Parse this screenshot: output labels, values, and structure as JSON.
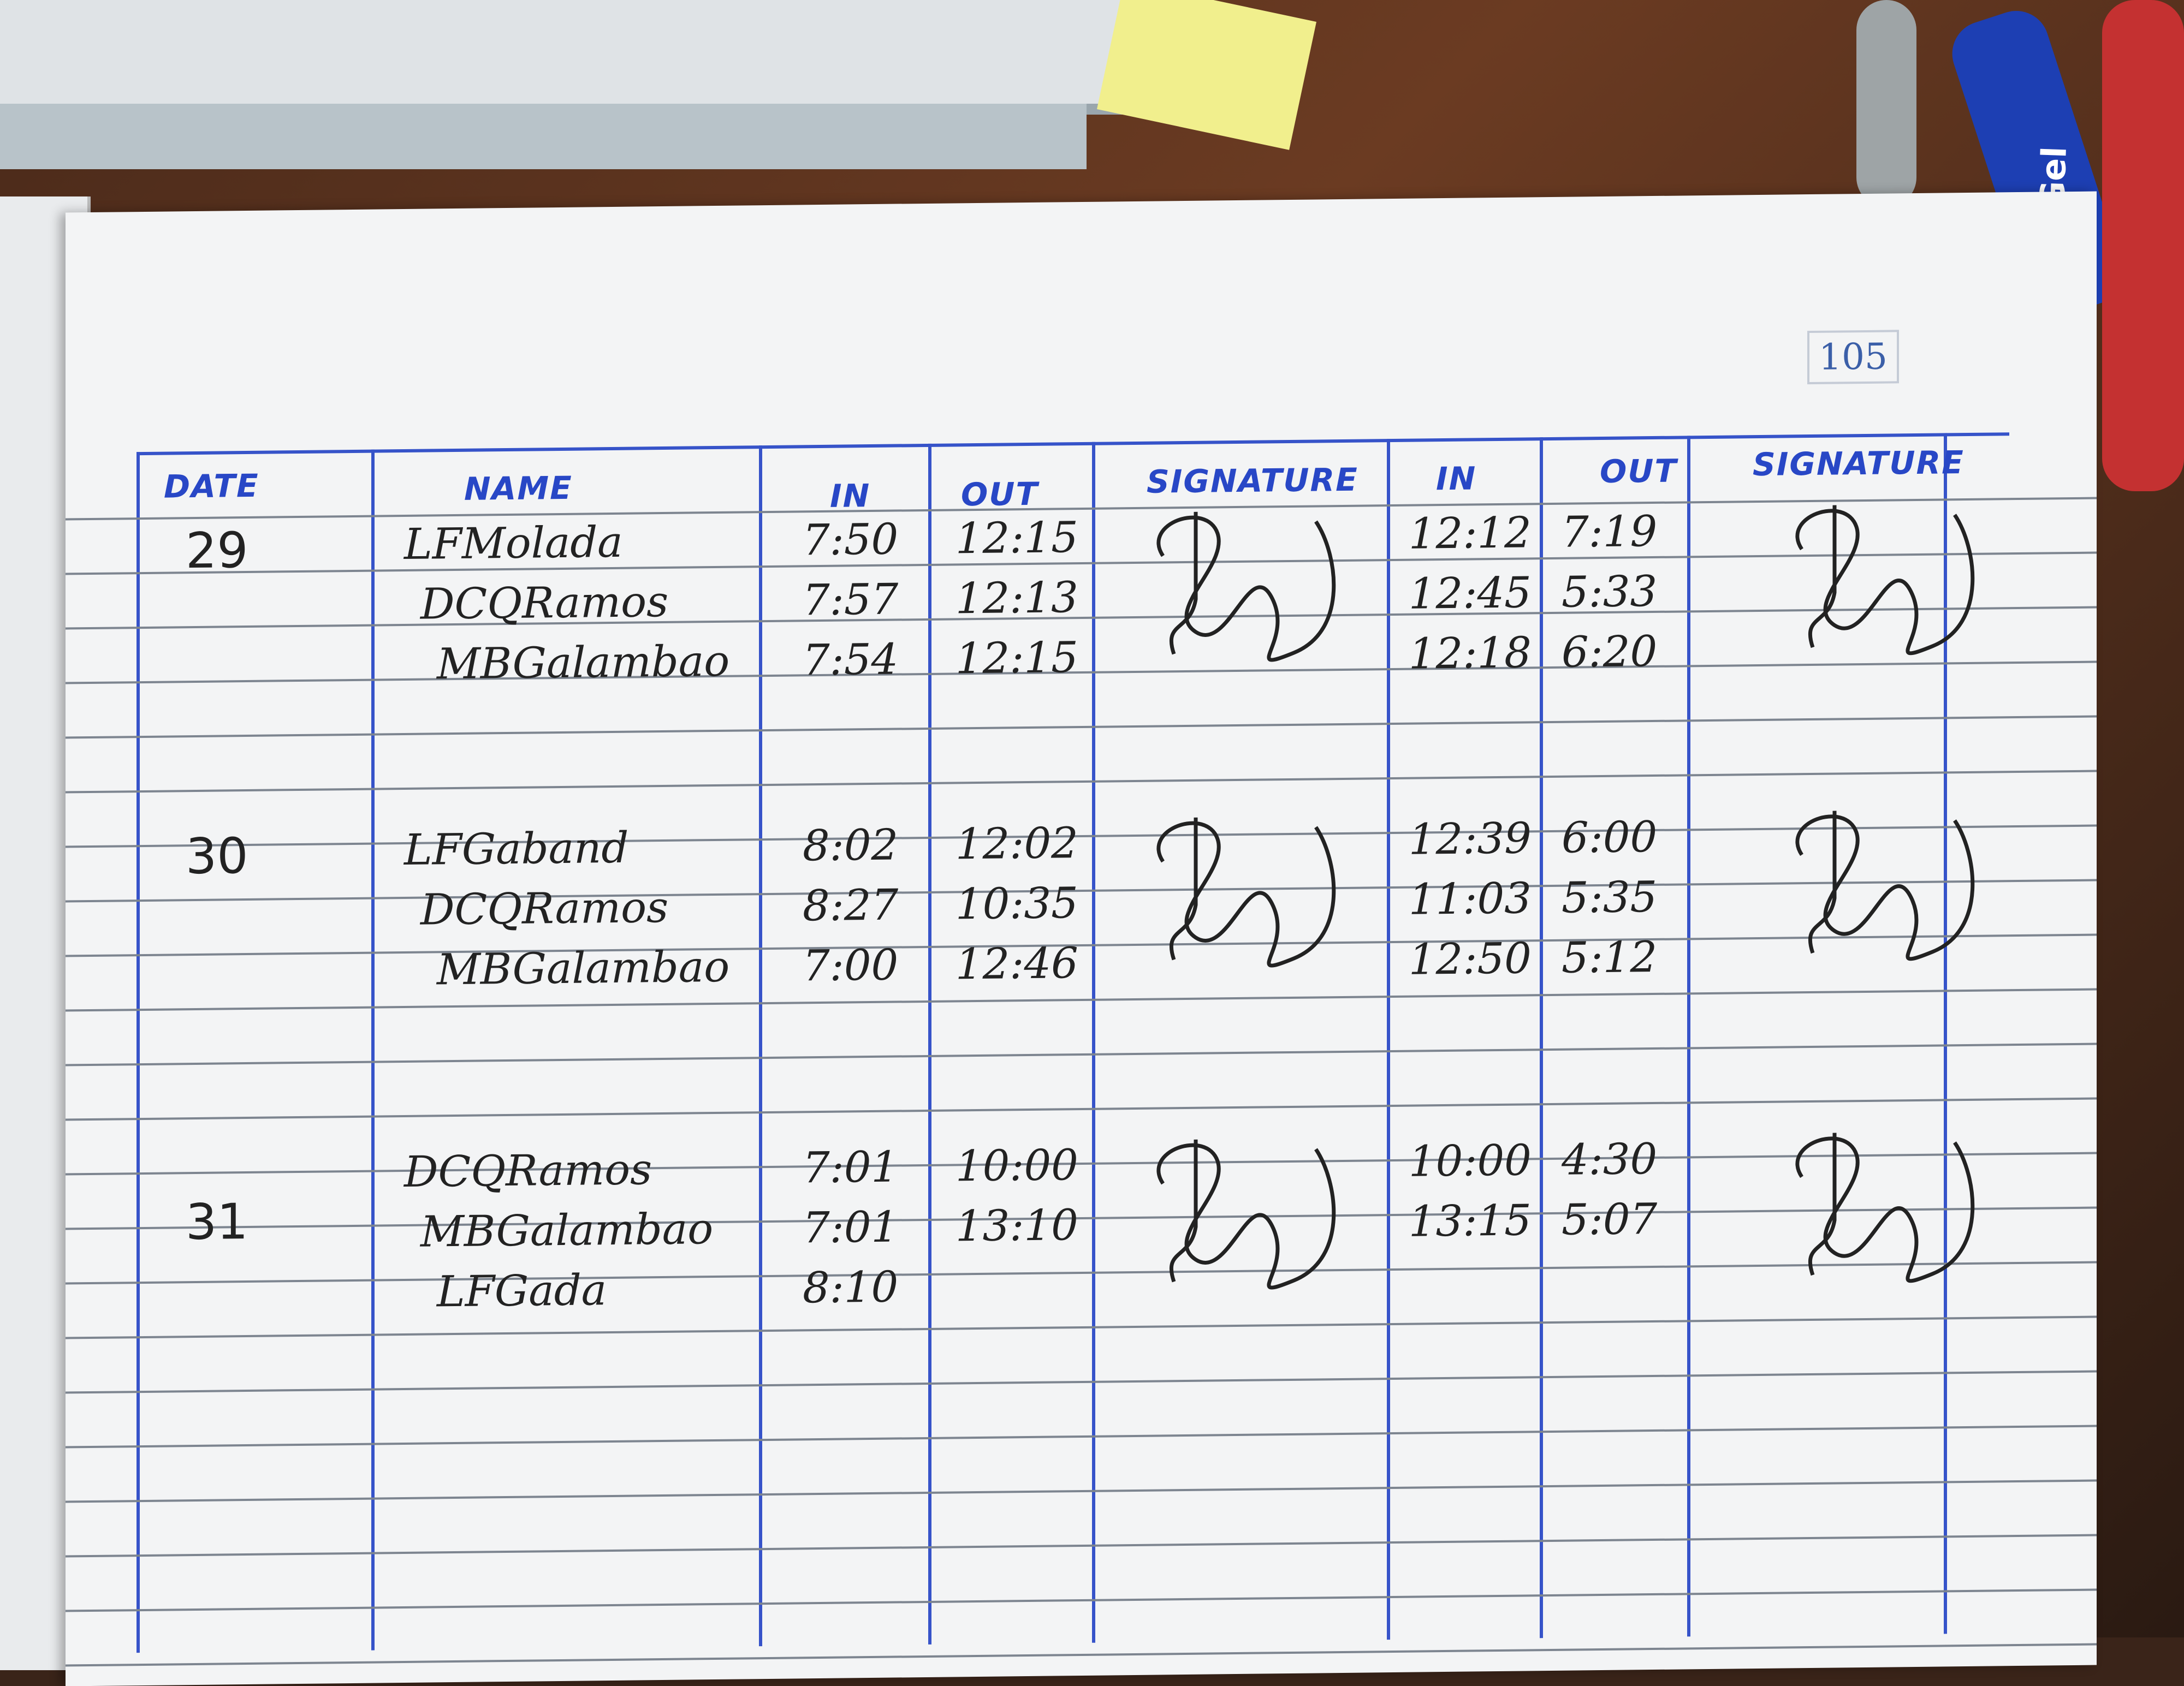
{
  "page_number": "105",
  "pen_label": "i-Gel",
  "headers": {
    "date": "DATE",
    "name": "NAME",
    "in1": "IN",
    "out1": "OUT",
    "sig1": "SIGNATURE",
    "in2": "IN",
    "out2": "OUT",
    "sig2": "SIGNATURE"
  },
  "days": [
    {
      "date": "29",
      "entries": [
        {
          "name": "LFMolada",
          "in1": "7:50",
          "out1": "12:15",
          "in2": "12:12",
          "out2": "7:19"
        },
        {
          "name": "DCQRamos",
          "in1": "7:57",
          "out1": "12:13",
          "in2": "12:45",
          "out2": "5:33"
        },
        {
          "name": "MBGalambao",
          "in1": "7:54",
          "out1": "12:15",
          "in2": "12:18",
          "out2": "6:20"
        }
      ]
    },
    {
      "date": "30",
      "entries": [
        {
          "name": "LFGaband",
          "in1": "8:02",
          "out1": "12:02",
          "in2": "12:39",
          "out2": "6:00"
        },
        {
          "name": "DCQRamos",
          "in1": "8:27",
          "out1": "10:35",
          "in2": "11:03",
          "out2": "5:35"
        },
        {
          "name": "MBGalambao",
          "in1": "7:00",
          "out1": "12:46",
          "in2": "12:50",
          "out2": "5:12"
        }
      ]
    },
    {
      "date": "31",
      "entries": [
        {
          "name": "DCQRamos",
          "in1": "7:01",
          "out1": "10:00",
          "in2": "10:00",
          "out2": "4:30"
        },
        {
          "name": "MBGalambao",
          "in1": "7:01",
          "out1": "13:10",
          "in2": "13:15",
          "out2": "5:07"
        },
        {
          "name": "LFGada",
          "in1": "8:10",
          "out1": "",
          "in2": "",
          "out2": ""
        }
      ]
    }
  ],
  "signature_text": "Ramos",
  "colors": {
    "ink_blue": "#2847c6",
    "ink_black": "#222222",
    "paper": "#f3f4f5"
  }
}
